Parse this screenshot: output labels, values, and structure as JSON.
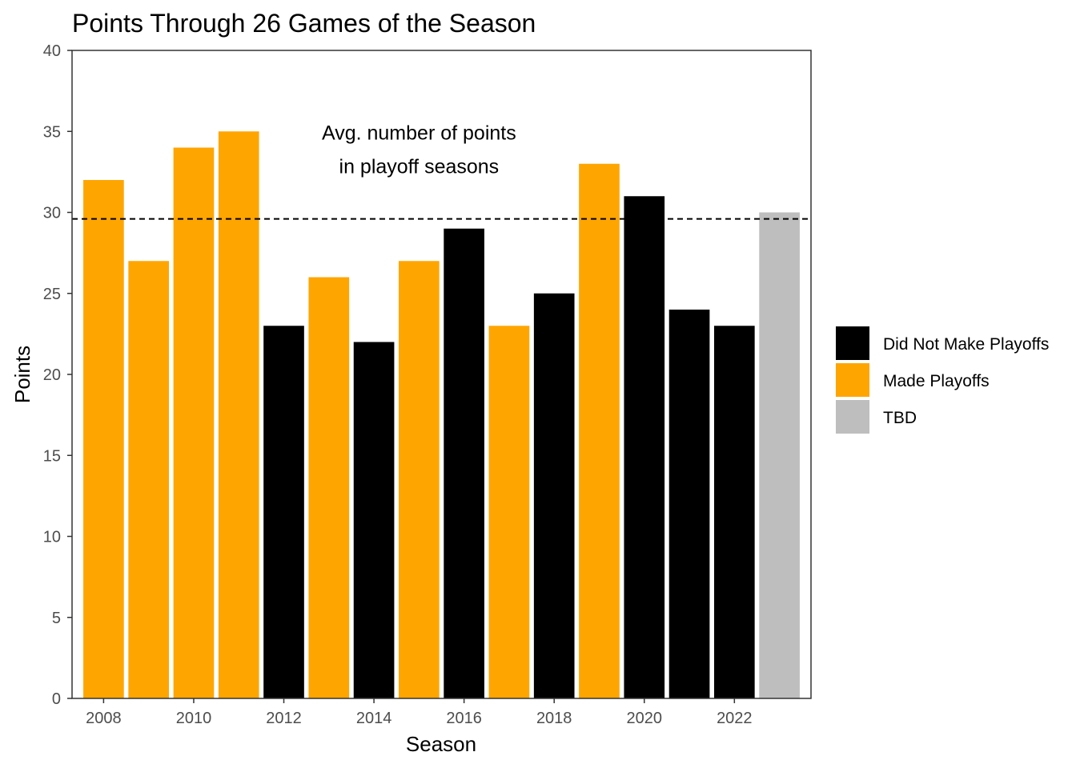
{
  "chart_data": {
    "type": "bar",
    "title": "Points Through 26 Games of the Season",
    "xlabel": "Season",
    "ylabel": "Points",
    "ylim": [
      0,
      40
    ],
    "yticks": [
      0,
      5,
      10,
      15,
      20,
      25,
      30,
      35,
      40
    ],
    "xlim": [
      2007.3,
      2023.7
    ],
    "xticks": [
      2008,
      2010,
      2012,
      2014,
      2016,
      2018,
      2020,
      2022
    ],
    "grid": false,
    "legend_position": "right",
    "categories": [
      "2008",
      "2009",
      "2010",
      "2011",
      "2012",
      "2013",
      "2014",
      "2015",
      "2016",
      "2017",
      "2018",
      "2019",
      "2020",
      "2021",
      "2022",
      "2023"
    ],
    "x": [
      2008,
      2009,
      2010,
      2011,
      2012,
      2013,
      2014,
      2015,
      2016,
      2017,
      2018,
      2019,
      2020,
      2021,
      2022,
      2023
    ],
    "values": [
      32,
      27,
      34,
      35,
      23,
      26,
      22,
      27,
      29,
      23,
      25,
      33,
      31,
      24,
      23,
      30
    ],
    "groups": [
      "Made Playoffs",
      "Made Playoffs",
      "Made Playoffs",
      "Made Playoffs",
      "Did Not Make Playoffs",
      "Made Playoffs",
      "Did Not Make Playoffs",
      "Made Playoffs",
      "Did Not Make Playoffs",
      "Made Playoffs",
      "Did Not Make Playoffs",
      "Made Playoffs",
      "Did Not Make Playoffs",
      "Did Not Make Playoffs",
      "Did Not Make Playoffs",
      "TBD"
    ],
    "legend": [
      {
        "label": "Did Not Make Playoffs",
        "color": "#000000"
      },
      {
        "label": "Made Playoffs",
        "color": "#FFA500"
      },
      {
        "label": "TBD",
        "color": "#BEBEBE"
      }
    ],
    "reference_line": {
      "value": 29.6,
      "style": "dashed"
    },
    "annotation": {
      "lines": [
        "Avg. number of points",
        "in playoff seasons"
      ],
      "x": 2015.0,
      "y": 33.5
    }
  }
}
